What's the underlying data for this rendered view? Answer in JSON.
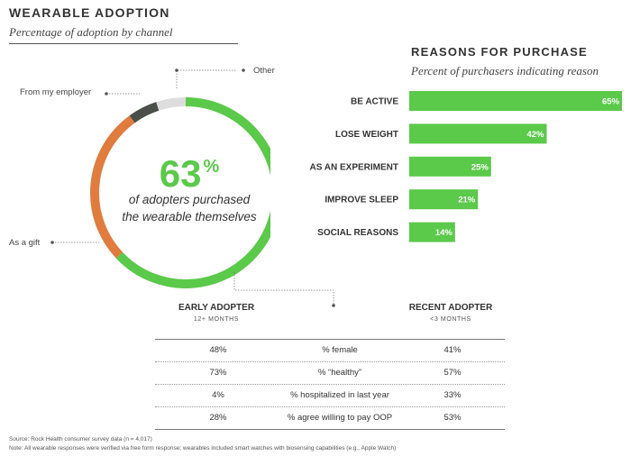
{
  "header": {
    "title": "WEARABLE ADOPTION",
    "subtitle": "Percentage of adoption by channel"
  },
  "donut": {
    "big_value": "63",
    "big_unit": "%",
    "caption_line1": "of adopters purchased",
    "caption_line2": "the wearable themselves",
    "labels": {
      "other": "Other",
      "employer": "From my employer",
      "gift": "As a gift"
    }
  },
  "reasons": {
    "title": "REASONS FOR PURCHASE",
    "subtitle": "Percent of purchasers indicating reason"
  },
  "groups": {
    "early_title": "EARLY ADOPTER",
    "early_sub": "12+ MONTHS",
    "recent_title": "RECENT ADOPTER",
    "recent_sub": "<3 MONTHS"
  },
  "table": {
    "rows": [
      {
        "early": "48%",
        "metric": "% female",
        "recent": "41%"
      },
      {
        "early": "73%",
        "metric": "% “healthy”",
        "recent": "57%"
      },
      {
        "early": "4%",
        "metric": "% hospitalized in last year",
        "recent": "33%"
      },
      {
        "early": "28%",
        "metric": "% agree willing to pay OOP",
        "recent": "53%"
      }
    ]
  },
  "footer": {
    "source": "Source: Rock Health consumer survey data (n = 4,017)",
    "note": "Note: All wearable responses were verified via free form response; wearables included smart watches with biosensing capabilities (e.g., Apple Watch)"
  },
  "colors": {
    "green": "#5bc94a",
    "orange": "#e07c3e",
    "dark": "#4a4f4a",
    "light": "#dddddd"
  },
  "chart_data": [
    {
      "type": "pie",
      "title": "WEARABLE ADOPTION",
      "subtitle": "Percentage of adoption by channel",
      "categories": [
        "Self-purchased",
        "As a gift",
        "From my employer",
        "Other"
      ],
      "values": [
        63,
        27,
        5,
        5
      ],
      "colors": [
        "#5bc94a",
        "#e07c3e",
        "#4a4f4a",
        "#dddddd"
      ]
    },
    {
      "type": "bar",
      "orientation": "horizontal",
      "title": "REASONS FOR PURCHASE",
      "subtitle": "Percent of purchasers indicating reason",
      "categories": [
        "BE ACTIVE",
        "LOSE WEIGHT",
        "AS AN EXPERIMENT",
        "IMPROVE SLEEP",
        "SOCIAL REASONS"
      ],
      "values": [
        65,
        42,
        25,
        21,
        14
      ],
      "value_labels": [
        "65%",
        "42%",
        "25%",
        "21%",
        "14%"
      ],
      "xlim": [
        0,
        65
      ],
      "color": "#5bc94a"
    }
  ]
}
